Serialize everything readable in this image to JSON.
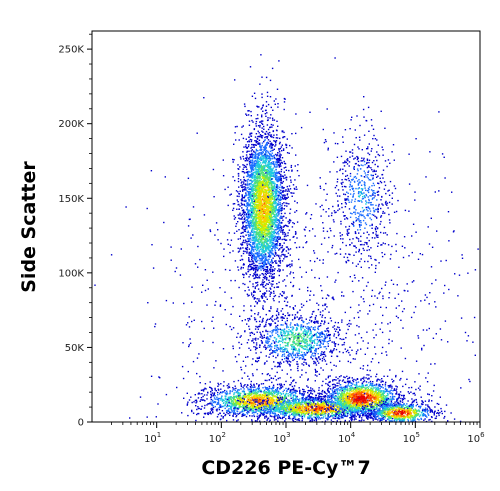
{
  "chart_data": {
    "type": "scatter",
    "style": "flow cytometry density dot plot (pseudocolor)",
    "xlabel": "CD226 PE-Cy™7",
    "ylabel": "Side Scatter",
    "x_scale": "log",
    "xlim": [
      1,
      1000000
    ],
    "ylim": [
      0,
      262144
    ],
    "x_ticks": [
      {
        "value": 10,
        "base": "10",
        "exp": "1"
      },
      {
        "value": 100,
        "base": "10",
        "exp": "2"
      },
      {
        "value": 1000,
        "base": "10",
        "exp": "3"
      },
      {
        "value": 10000,
        "base": "10",
        "exp": "4"
      },
      {
        "value": 100000,
        "base": "10",
        "exp": "5"
      },
      {
        "value": 1000000,
        "base": "10",
        "exp": "6"
      }
    ],
    "y_ticks": [
      {
        "value": 0,
        "label": "0"
      },
      {
        "value": 50000,
        "label": "50K"
      },
      {
        "value": 100000,
        "label": "100K"
      },
      {
        "value": 150000,
        "label": "150K"
      },
      {
        "value": 200000,
        "label": "200K"
      },
      {
        "value": 250000,
        "label": "250K"
      }
    ],
    "density_colors": [
      "#0000cc",
      "#1a6cff",
      "#1ec8e0",
      "#4ee07a",
      "#c8f000",
      "#ffcc00",
      "#ff6600",
      "#e80000"
    ],
    "populations": [
      {
        "x_center": 450,
        "y_center": 145000,
        "x_spread_decades": 0.17,
        "y_spread": 26000,
        "count": 3800,
        "peak_density": 0.7
      },
      {
        "x_center": 1500,
        "y_center": 55000,
        "x_spread_decades": 0.35,
        "y_spread": 9000,
        "count": 900,
        "peak_density": 0.45
      },
      {
        "x_center": 15000,
        "y_center": 150000,
        "x_spread_decades": 0.22,
        "y_spread": 22000,
        "count": 550,
        "peak_density": 0.25
      },
      {
        "x_center": 400,
        "y_center": 14000,
        "x_spread_decades": 0.45,
        "y_spread": 5500,
        "count": 1600,
        "peak_density": 0.8
      },
      {
        "x_center": 3000,
        "y_center": 9000,
        "x_spread_decades": 0.5,
        "y_spread": 4000,
        "count": 1300,
        "peak_density": 0.85
      },
      {
        "x_center": 15000,
        "y_center": 16000,
        "x_spread_decades": 0.3,
        "y_spread": 6000,
        "count": 1500,
        "peak_density": 1.0
      },
      {
        "x_center": 60000,
        "y_center": 6000,
        "x_spread_decades": 0.25,
        "y_spread": 3500,
        "count": 700,
        "peak_density": 0.95
      },
      {
        "x_center": 3000,
        "y_center": 80000,
        "x_spread_decades": 1.2,
        "y_spread": 55000,
        "count": 900,
        "peak_density": 0.05
      }
    ]
  }
}
